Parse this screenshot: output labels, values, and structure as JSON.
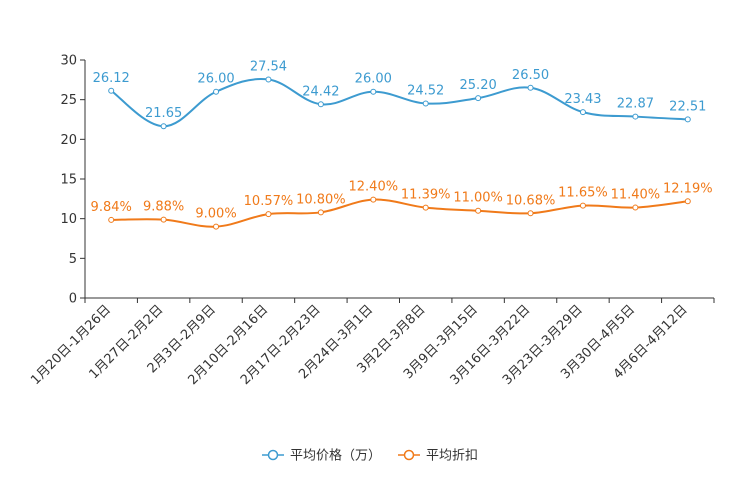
{
  "chart_data": {
    "type": "line",
    "categories": [
      "1月20日-1月26日",
      "1月27日-2月2日",
      "2月3日-2月9日",
      "2月10日-2月16日",
      "2月17日-2月23日",
      "2月24日-3月1日",
      "3月2日-3月8日",
      "3月9日-3月15日",
      "3月16日-3月22日",
      "3月23日-3月29日",
      "3月30日-4月5日",
      "4月6日-4月12日"
    ],
    "ylim": [
      0,
      30
    ],
    "yticks": [
      0,
      5,
      10,
      15,
      20,
      25,
      30
    ],
    "series": [
      {
        "name": "平均价格（万）",
        "color": "#3d9bd0",
        "values": [
          26.12,
          21.65,
          26.0,
          27.54,
          24.42,
          26.0,
          24.52,
          25.2,
          26.5,
          23.43,
          22.87,
          22.51
        ],
        "labels": [
          "26.12",
          "21.65",
          "26.00",
          "27.54",
          "24.42",
          "26.00",
          "24.52",
          "25.20",
          "26.50",
          "23.43",
          "22.87",
          "22.51"
        ]
      },
      {
        "name": "平均折扣",
        "color": "#f07a1a",
        "values": [
          9.84,
          9.88,
          9.0,
          10.57,
          10.8,
          12.4,
          11.39,
          11.0,
          10.68,
          11.65,
          11.4,
          12.19
        ],
        "labels": [
          "9.84%",
          "9.88%",
          "9.00%",
          "10.57%",
          "10.80%",
          "12.40%",
          "11.39%",
          "11.00%",
          "10.68%",
          "11.65%",
          "11.40%",
          "12.19%"
        ]
      }
    ],
    "legend_position": "bottom"
  }
}
